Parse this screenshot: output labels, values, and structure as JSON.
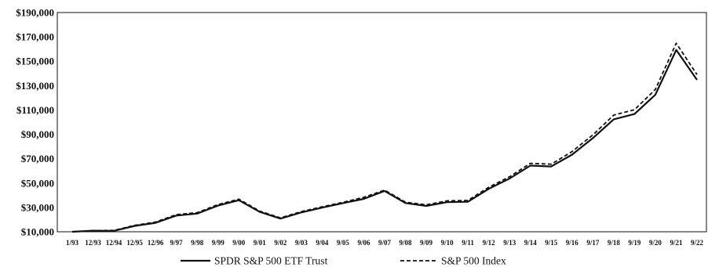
{
  "chart_data": {
    "type": "line",
    "title": "",
    "xlabel": "",
    "ylabel": "",
    "ylim": [
      10000,
      190000
    ],
    "yticks": [
      10000,
      30000,
      50000,
      70000,
      90000,
      110000,
      130000,
      150000,
      170000,
      190000
    ],
    "ytick_labels": [
      "$10,000",
      "$30,000",
      "$50,000",
      "$70,000",
      "$90,000",
      "$110,000",
      "$130,000",
      "$150,000",
      "$170,000",
      "$190,000"
    ],
    "categories": [
      "1/93",
      "12/93",
      "12/94",
      "12/95",
      "12/96",
      "9/97",
      "9/98",
      "9/99",
      "9/00",
      "9/01",
      "9/02",
      "9/03",
      "9/04",
      "9/05",
      "9/06",
      "9/07",
      "9/08",
      "9/09",
      "9/10",
      "9/11",
      "9/12",
      "9/13",
      "9/14",
      "9/15",
      "9/16",
      "9/17",
      "9/18",
      "9/19",
      "9/20",
      "9/21",
      "9/22"
    ],
    "grid": false,
    "legend_position": "bottom",
    "series": [
      {
        "name": "SPDR S&P 500 ETF Trust",
        "style": "solid",
        "color": "#111111",
        "values": [
          10000,
          10900,
          10800,
          14800,
          17300,
          23300,
          24900,
          31500,
          35900,
          26300,
          20800,
          25900,
          29800,
          33500,
          37000,
          43500,
          33600,
          31200,
          34300,
          34600,
          45200,
          53700,
          64300,
          63600,
          73300,
          86900,
          102300,
          106700,
          122500,
          159300,
          134700
        ]
      },
      {
        "name": "S&P 500 Index",
        "style": "dashed",
        "color": "#111111",
        "values": [
          10000,
          11000,
          11100,
          15300,
          18000,
          24100,
          25700,
          32300,
          36800,
          27000,
          21400,
          26600,
          30500,
          34200,
          38300,
          44200,
          34300,
          32100,
          35400,
          35700,
          46600,
          55200,
          66200,
          65500,
          75800,
          89500,
          105800,
          110200,
          126800,
          164800,
          139000
        ]
      }
    ]
  }
}
